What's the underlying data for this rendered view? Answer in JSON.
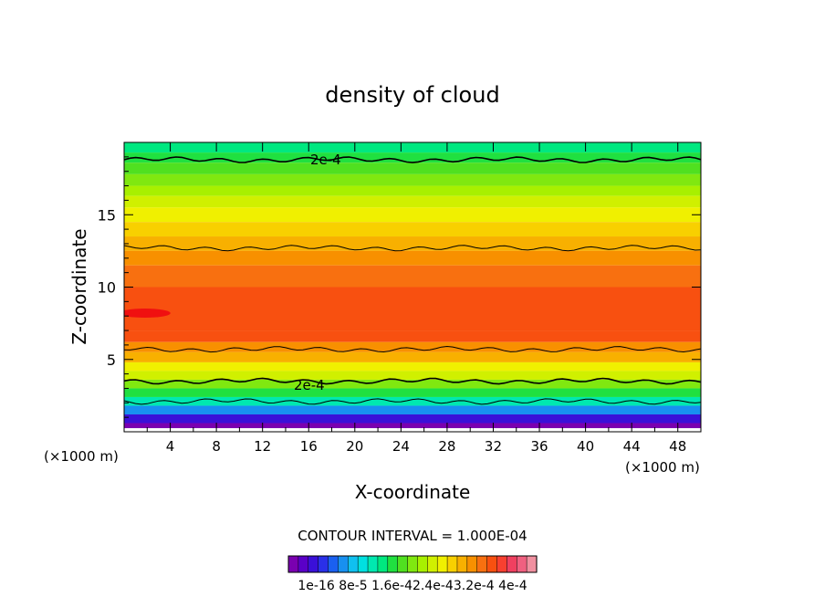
{
  "chart_data": {
    "type": "heatmap",
    "title": "density of cloud",
    "xlabel": "X-coordinate",
    "ylabel": "Z-coordinate",
    "x_unit_left": "(×1000 m)",
    "x_unit_right": "(×1000 m)",
    "xlim": [
      0,
      50
    ],
    "ylim": [
      0,
      20
    ],
    "x_ticks": [
      "4",
      "8",
      "12",
      "16",
      "20",
      "24",
      "28",
      "32",
      "36",
      "40",
      "44",
      "48"
    ],
    "y_ticks": [
      "5",
      "10",
      "15"
    ],
    "contour_interval_text": "CONTOUR INTERVAL = 1.000E-04",
    "contour_label_upper": "2e-4",
    "contour_label_lower": "2e-4",
    "colorbar_labels": [
      "1e-16",
      "8e-5",
      "1.6e-4",
      "2.4e-4",
      "3.2e-4",
      "4e-4"
    ],
    "colorbar_label_text": "1e-16 8e-5 1.6e-42.4e-43.2e-4 4e-4",
    "color_levels": [
      "#7a00b0",
      "#5a00c8",
      "#3a10d8",
      "#2a30e8",
      "#1a60f0",
      "#1890f0",
      "#10c0f0",
      "#00e0e0",
      "#00e8b0",
      "#00e880",
      "#20e040",
      "#50e020",
      "#80e810",
      "#a8f000",
      "#d0f000",
      "#f0f000",
      "#f8d000",
      "#f8b000",
      "#f89000",
      "#f87010",
      "#f85010",
      "#f84030",
      "#f04060",
      "#f06080",
      "#f090a0"
    ],
    "band_profile": [
      {
        "z": 0.6,
        "level": 0
      },
      {
        "z": 1.2,
        "level": 2
      },
      {
        "z": 1.8,
        "level": 5
      },
      {
        "z": 2.4,
        "level": 8
      },
      {
        "z": 3.0,
        "level": 10
      },
      {
        "z": 3.6,
        "level": 12
      },
      {
        "z": 4.2,
        "level": 14
      },
      {
        "z": 4.8,
        "level": 15
      },
      {
        "z": 5.5,
        "level": 17
      },
      {
        "z": 6.2,
        "level": 18
      },
      {
        "z": 7.0,
        "level": 20
      },
      {
        "z": 10.0,
        "level": 20
      },
      {
        "z": 11.5,
        "level": 19
      },
      {
        "z": 12.5,
        "level": 18
      },
      {
        "z": 13.5,
        "level": 17
      },
      {
        "z": 14.5,
        "level": 16
      },
      {
        "z": 15.5,
        "level": 15
      },
      {
        "z": 16.3,
        "level": 14
      },
      {
        "z": 17.0,
        "level": 13
      },
      {
        "z": 17.8,
        "level": 12
      },
      {
        "z": 18.6,
        "level": 11
      },
      {
        "z": 19.3,
        "level": 10
      },
      {
        "z": 20.0,
        "level": 9
      }
    ],
    "contours_z": [
      18.8,
      12.7,
      5.7,
      3.5,
      2.1
    ]
  }
}
